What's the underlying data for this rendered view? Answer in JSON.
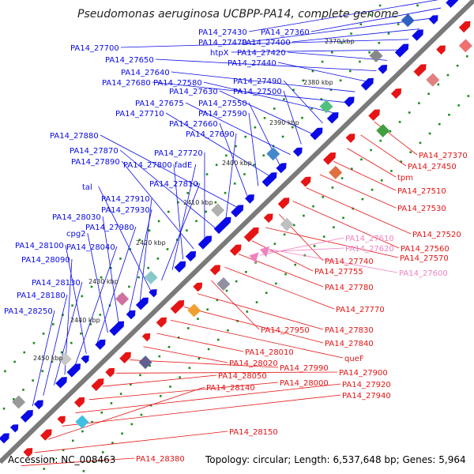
{
  "title": "Pseudomonas aeruginosa UCBPP-PA14, complete genome",
  "footer": {
    "accession": "Accession: NC_008463",
    "summary": "Topology: circular; Length: 6,537,648 bp; Genes: 5,964"
  },
  "colors": {
    "forward": "#0a0ae6",
    "reverse": "#e61414",
    "pink": "#f080c0",
    "backbone": "#808080",
    "dots": "#1a8c1a"
  },
  "ruler": [
    "2370 kbp",
    "2380 kbp",
    "2390 kbp",
    "2400 kbp",
    "2410 kbp",
    "2420 kbp",
    "2430 kbp",
    "2440 kbp",
    "2450 kbp"
  ],
  "left_labels": [
    "PA14_27430",
    "PA14_27360",
    "PA14_27470",
    "PA14_27400",
    "PA14_27700",
    "htpX",
    "PA14_27420",
    "PA14_27650",
    "PA14_27440",
    "PA14_27640",
    "PA14_27680",
    "PA14_27580",
    "PA14_27490",
    "PA14_27630",
    "PA14_27500",
    "PA14_27675",
    "PA14_27550",
    "PA14_27710",
    "PA14_27590",
    "PA14_27660",
    "PA14_27880",
    "PA14_27690",
    "PA14_27870",
    "PA14_27720",
    "PA14_27890",
    "PA14_27800",
    "fadE",
    "PA14_27810",
    "tal",
    "PA14_27910",
    "PA14_27930",
    "PA14_28030",
    "cpg2",
    "PA14_27980",
    "PA14_28100",
    "PA14_28040",
    "PA14_28090",
    "PA14_28130",
    "PA14_28180",
    "PA14_28250"
  ],
  "right_labels": [
    "PA14_27370",
    "PA14_27450",
    "tpm",
    "PA14_27510",
    "PA14_27530",
    "PA14_27520",
    "PA14_27560",
    "PA14_27740",
    "PA14_27570",
    "PA14_27755",
    "PA14_27780",
    "PA14_27770",
    "PA14_27950",
    "PA14_27830",
    "PA14_27840",
    "queF",
    "PA14_28010",
    "PA14_28020",
    "PA14_27990",
    "PA14_27900",
    "PA14_28050",
    "PA14_28000",
    "PA14_27920",
    "PA14_27940",
    "PA14_28140",
    "PA14_28150",
    "PA14_28380"
  ],
  "pink_labels": [
    "PA14_27610",
    "PA14_27620",
    "PA14_27600"
  ]
}
